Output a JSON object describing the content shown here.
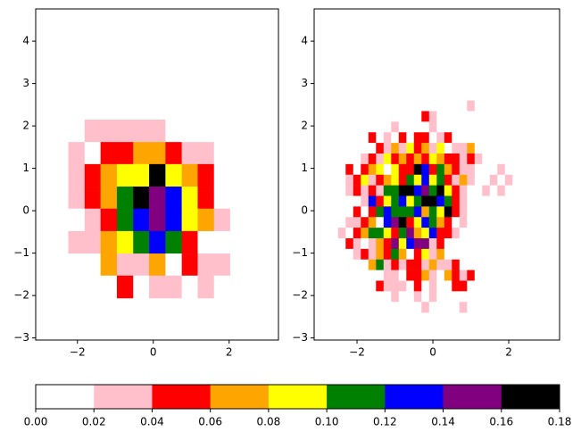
{
  "chart_data": [
    {
      "type": "heatmap",
      "xedges": [
        -2.24,
        -1.81,
        -1.39,
        -0.96,
        -0.53,
        -0.11,
        0.32,
        0.75,
        1.17,
        1.6,
        2.02
      ],
      "yedges": [
        2.15,
        1.62,
        1.1,
        0.57,
        0.05,
        -0.48,
        -1.01,
        -1.53,
        -2.06
      ],
      "values": [
        [
          0,
          0.03,
          0.03,
          0.03,
          0.03,
          0.03,
          0,
          0,
          0,
          0
        ],
        [
          0.03,
          0,
          0.05,
          0.05,
          0.07,
          0.07,
          0.05,
          0.03,
          0.03,
          0
        ],
        [
          0.03,
          0.05,
          0.07,
          0.09,
          0.09,
          0.17,
          0.09,
          0.07,
          0.05,
          0
        ],
        [
          0.03,
          0.05,
          0.07,
          0.11,
          0.17,
          0.15,
          0.13,
          0.09,
          0.05,
          0
        ],
        [
          0,
          0.03,
          0.05,
          0.11,
          0.13,
          0.15,
          0.13,
          0.09,
          0.07,
          0.03
        ],
        [
          0.03,
          0.03,
          0.07,
          0.09,
          0.11,
          0.13,
          0.11,
          0.05,
          0,
          0
        ],
        [
          0,
          0,
          0.07,
          0.03,
          0.03,
          0.07,
          0,
          0.05,
          0.03,
          0.03
        ],
        [
          0,
          0,
          0,
          0.05,
          0,
          0.03,
          0.03,
          0,
          0.03,
          0
        ]
      ],
      "xlim": [
        -3.1,
        3.3
      ],
      "ylim": [
        -3.05,
        4.76
      ],
      "xticks": [
        {
          "value": -2,
          "label": "−2"
        },
        0,
        2
      ],
      "yticks": [
        {
          "value": -3,
          "label": "−3"
        },
        {
          "value": -2,
          "label": "−2"
        },
        {
          "value": -1,
          "label": "−1"
        },
        0,
        1,
        2,
        3,
        4
      ]
    },
    {
      "type": "heatmap",
      "xedges": [
        -2.5,
        -2.3,
        -2.1,
        -1.9,
        -1.7,
        -1.5,
        -1.3,
        -1.1,
        -0.9,
        -0.7,
        -0.5,
        -0.3,
        -0.1,
        0.1,
        0.3,
        0.5,
        0.7,
        0.9,
        1.1,
        1.3,
        1.5,
        1.7,
        1.9,
        2.1,
        2.3,
        2.5,
        2.7
      ],
      "yedges": [
        2.6,
        2.35,
        2.1,
        1.85,
        1.6,
        1.35,
        1.1,
        0.85,
        0.6,
        0.35,
        0.1,
        -0.15,
        -0.4,
        -0.65,
        -0.9,
        -1.15,
        -1.4,
        -1.65,
        -1.9,
        -2.15,
        -2.4
      ],
      "values": [
        [
          0,
          0,
          0,
          0,
          0,
          0,
          0,
          0,
          0,
          0,
          0,
          0,
          0,
          0,
          0,
          0,
          0,
          0.03,
          0,
          0,
          0,
          0,
          0,
          0,
          0,
          0
        ],
        [
          0,
          0,
          0,
          0,
          0,
          0,
          0,
          0,
          0,
          0,
          0,
          0.05,
          0.03,
          0,
          0,
          0,
          0,
          0,
          0,
          0,
          0,
          0,
          0,
          0,
          0,
          0
        ],
        [
          0,
          0,
          0,
          0,
          0,
          0,
          0,
          0.03,
          0,
          0,
          0,
          0,
          0.03,
          0,
          0,
          0,
          0,
          0,
          0,
          0,
          0,
          0,
          0,
          0,
          0,
          0
        ],
        [
          0,
          0,
          0,
          0,
          0.05,
          0,
          0.03,
          0,
          0.05,
          0,
          0.05,
          0.05,
          0,
          0.03,
          0.05,
          0,
          0,
          0,
          0,
          0,
          0,
          0,
          0,
          0,
          0,
          0
        ],
        [
          0,
          0,
          0,
          0,
          0,
          0.05,
          0.03,
          0.07,
          0.03,
          0.09,
          0.05,
          0.07,
          0.03,
          0.09,
          0,
          0.03,
          0.03,
          0.07,
          0,
          0,
          0,
          0,
          0,
          0,
          0,
          0
        ],
        [
          0,
          0,
          0,
          0.03,
          0.05,
          0.03,
          0.09,
          0.05,
          0.07,
          0.05,
          0.07,
          0.05,
          0.09,
          0.07,
          0.05,
          0.05,
          0.03,
          0.05,
          0.03,
          0,
          0,
          0,
          0,
          0,
          0,
          0
        ],
        [
          0,
          0.05,
          0,
          0.05,
          0.07,
          0.09,
          0,
          0.09,
          0.05,
          0.05,
          0.17,
          0.13,
          0.05,
          0.11,
          0.07,
          0.05,
          0.03,
          0.03,
          0,
          0,
          0,
          0.03,
          0,
          0,
          0,
          0
        ],
        [
          0,
          0.03,
          0.05,
          0.09,
          0.03,
          0.05,
          0.07,
          0.09,
          0.05,
          0.11,
          0.09,
          0.13,
          0.09,
          0.11,
          0.05,
          0.03,
          0.07,
          0.03,
          0,
          0,
          0.03,
          0,
          0.03,
          0,
          0,
          0
        ],
        [
          0,
          0.03,
          0.05,
          0.03,
          0.05,
          0.03,
          0.11,
          0.11,
          0.17,
          0.17,
          0.13,
          0.15,
          0.11,
          0.17,
          0.09,
          0.05,
          0.03,
          0,
          0,
          0.03,
          0,
          0.03,
          0,
          0,
          0,
          0
        ],
        [
          0,
          0,
          0,
          0.03,
          0.13,
          0.05,
          0.09,
          0.11,
          0.13,
          0.09,
          0.11,
          0.17,
          0.17,
          0.13,
          0.11,
          0.05,
          0.03,
          0,
          0,
          0,
          0,
          0,
          0,
          0,
          0,
          0
        ],
        [
          0,
          0,
          0.05,
          0,
          0.05,
          0.11,
          0.13,
          0.11,
          0.11,
          0.11,
          0.13,
          0.07,
          0.11,
          0.09,
          0.17,
          0.05,
          0.03,
          0,
          0,
          0,
          0,
          0,
          0,
          0,
          0,
          0
        ],
        [
          0,
          0.03,
          0.03,
          0.05,
          0.07,
          0,
          0.13,
          0.15,
          0.17,
          0.05,
          0.09,
          0.13,
          0.11,
          0.07,
          0.05,
          0,
          0.03,
          0,
          0,
          0,
          0,
          0,
          0,
          0,
          0,
          0
        ],
        [
          0.03,
          0,
          0.05,
          0.07,
          0.11,
          0.11,
          0.09,
          0.05,
          0.11,
          0.15,
          0.07,
          0.09,
          0.13,
          0.05,
          0.05,
          0.03,
          0,
          0,
          0,
          0,
          0,
          0,
          0,
          0,
          0,
          0
        ],
        [
          0,
          0.05,
          0.03,
          0,
          0.03,
          0.07,
          0.05,
          0.15,
          0.09,
          0.13,
          0.15,
          0.15,
          0.03,
          0.05,
          0,
          0,
          0,
          0,
          0,
          0,
          0,
          0,
          0,
          0,
          0,
          0
        ],
        [
          0,
          0,
          0.03,
          0.05,
          0.03,
          0.07,
          0.05,
          0.11,
          0.07,
          0,
          0.05,
          0.09,
          0.03,
          0.07,
          0,
          0,
          0,
          0,
          0,
          0,
          0,
          0,
          0,
          0,
          0,
          0
        ],
        [
          0,
          0,
          0,
          0,
          0.07,
          0.11,
          0.03,
          0.05,
          0.03,
          0.05,
          0.05,
          0.03,
          0.07,
          0.03,
          0.03,
          0.05,
          0,
          0,
          0,
          0,
          0,
          0,
          0,
          0,
          0,
          0
        ],
        [
          0,
          0,
          0,
          0,
          0,
          0,
          0.03,
          0.03,
          0,
          0.05,
          0.05,
          0.07,
          0.03,
          0,
          0.07,
          0.05,
          0.03,
          0.05,
          0,
          0,
          0,
          0,
          0,
          0,
          0,
          0
        ],
        [
          0,
          0,
          0,
          0,
          0,
          0.05,
          0.03,
          0.03,
          0.03,
          0,
          0.05,
          0,
          0.03,
          0,
          0,
          0.05,
          0.05,
          0,
          0,
          0,
          0,
          0,
          0,
          0,
          0,
          0
        ],
        [
          0,
          0,
          0,
          0,
          0,
          0,
          0,
          0.03,
          0,
          0,
          0.03,
          0,
          0.03,
          0,
          0,
          0,
          0,
          0,
          0,
          0,
          0,
          0,
          0,
          0,
          0,
          0
        ],
        [
          0,
          0,
          0,
          0,
          0,
          0,
          0,
          0,
          0,
          0,
          0,
          0.03,
          0,
          0,
          0,
          0,
          0.03,
          0,
          0,
          0,
          0,
          0,
          0,
          0,
          0,
          0
        ]
      ],
      "xlim": [
        -3.13,
        3.34
      ],
      "ylim": [
        -3.05,
        4.76
      ],
      "xticks": [
        {
          "value": -2,
          "label": "−2"
        },
        0,
        2
      ],
      "yticks": [
        {
          "value": -3,
          "label": "−3"
        },
        {
          "value": -2,
          "label": "−2"
        },
        {
          "value": -1,
          "label": "−1"
        },
        0,
        1,
        2,
        3,
        4
      ]
    },
    {
      "type": "colorbar",
      "boundaries": [
        0,
        0.02,
        0.04,
        0.06,
        0.08,
        0.1,
        0.12,
        0.14,
        0.16,
        0.18
      ],
      "colors": [
        "#ffffff",
        "#ffc0cb",
        "#ff0000",
        "#ffa500",
        "#ffff00",
        "#008000",
        "#0000ff",
        "#800080",
        "#000000"
      ],
      "ticks": [
        {
          "value": 0,
          "label": "0.00"
        },
        {
          "value": 0.02,
          "label": "0.02"
        },
        {
          "value": 0.04,
          "label": "0.04"
        },
        {
          "value": 0.06,
          "label": "0.06"
        },
        {
          "value": 0.08,
          "label": "0.08"
        },
        {
          "value": 0.1,
          "label": "0.10"
        },
        {
          "value": 0.12,
          "label": "0.12"
        },
        {
          "value": 0.14,
          "label": "0.14"
        },
        {
          "value": 0.16,
          "label": "0.16"
        },
        {
          "value": 0.18,
          "label": "0.18"
        }
      ]
    }
  ]
}
